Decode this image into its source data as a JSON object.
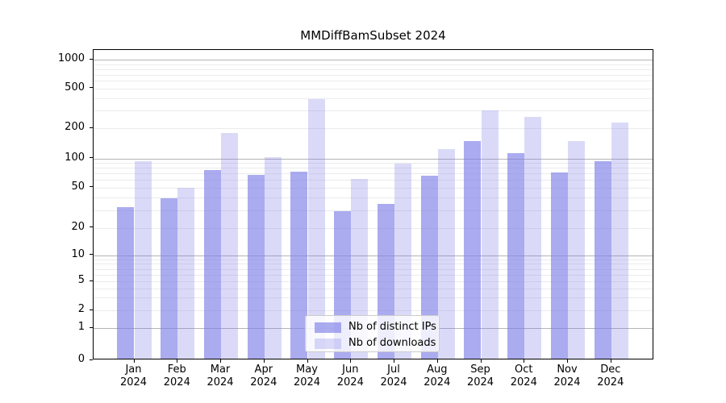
{
  "figure": {
    "title": "MMDiffBamSubset 2024",
    "background": "#ffffff",
    "accent_bar_dark": "#a8a8ef",
    "accent_bar_light": "#d9d9f8"
  },
  "chart_data": {
    "type": "bar",
    "title": "MMDiffBamSubset 2024",
    "year": "2024",
    "months": [
      "Jan",
      "Feb",
      "Mar",
      "Apr",
      "May",
      "Jun",
      "Jul",
      "Aug",
      "Sep",
      "Oct",
      "Nov",
      "Dec"
    ],
    "categories": [
      "Jan 2024",
      "Feb 2024",
      "Mar 2024",
      "Apr 2024",
      "May 2024",
      "Jun 2024",
      "Jul 2024",
      "Aug 2024",
      "Sep 2024",
      "Oct 2024",
      "Nov 2024",
      "Dec 2024"
    ],
    "series": [
      {
        "name": "Nb of distinct IPs",
        "color": "rgba(128,128,232,0.66)",
        "color_hex_on_white": "#a8a8ef",
        "values": [
          31,
          38,
          73,
          65,
          70,
          28,
          33,
          64,
          145,
          110,
          69,
          90
        ]
      },
      {
        "name": "Nb of downloads",
        "color": "rgba(128,128,232,0.29)",
        "color_hex_on_white": "#d9d9f8",
        "values": [
          90,
          48,
          175,
          100,
          380,
          59,
          85,
          120,
          290,
          250,
          145,
          220
        ]
      }
    ],
    "xlabel": "",
    "ylabel": "",
    "yscale": "log-like (linear 0-1, logarithmic above)",
    "ytick_values": [
      0,
      1,
      2,
      5,
      10,
      20,
      50,
      100,
      200,
      500,
      1000
    ],
    "ytick_labels": [
      "0",
      "1",
      "2",
      "5",
      "10",
      "20",
      "50",
      "100",
      "200",
      "500",
      "1000"
    ],
    "ylim": [
      0,
      1250
    ],
    "grid": {
      "horizontal": true,
      "vertical": false,
      "major_color": "#b4b4b4",
      "minor_color": "#ebebeb"
    },
    "legend_position": "lower center"
  },
  "legend": {
    "entries": [
      "Nb of distinct IPs",
      "Nb of downloads"
    ]
  }
}
